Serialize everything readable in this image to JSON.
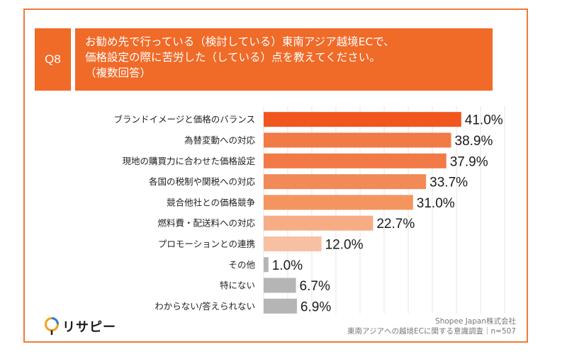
{
  "question": {
    "number": "Q8",
    "text": "お勧め先で行っている（検討している）東南アジア越境ECで、\n価格設定の際に苦労した（している）点を教えてください。\n（複数回答）"
  },
  "chart_data": {
    "type": "bar",
    "orientation": "horizontal",
    "categories": [
      "ブランドイメージと価格のバランス",
      "為替変動への対応",
      "現地の購買力に合わせた価格設定",
      "各国の税制や関税への対応",
      "競合他社との価格競争",
      "燃料費・配送料への対応",
      "プロモーションとの連携",
      "その他",
      "特にない",
      "わからない/答えられない"
    ],
    "values": [
      41.0,
      38.9,
      37.9,
      33.7,
      31.0,
      22.7,
      12.0,
      1.0,
      6.7,
      6.9
    ],
    "value_labels": [
      "41.0%",
      "38.9%",
      "37.9%",
      "33.7%",
      "31.0%",
      "22.7%",
      "12.0%",
      "1.0%",
      "6.7%",
      "6.9%"
    ],
    "colors": [
      "#f0561e",
      "#f27a46",
      "#f27a46",
      "#f28a58",
      "#f4955f",
      "#f6ad86",
      "#f8c0a2",
      "#b5b5b5",
      "#b5b5b5",
      "#b5b5b5"
    ],
    "xlim": [
      0,
      50
    ],
    "grid": true
  },
  "footer": {
    "logo_text": "リサピー",
    "company": "Shopee Japan株式会社",
    "survey": "東南アジアへの越境ECに関する意識調査｜n=507"
  }
}
